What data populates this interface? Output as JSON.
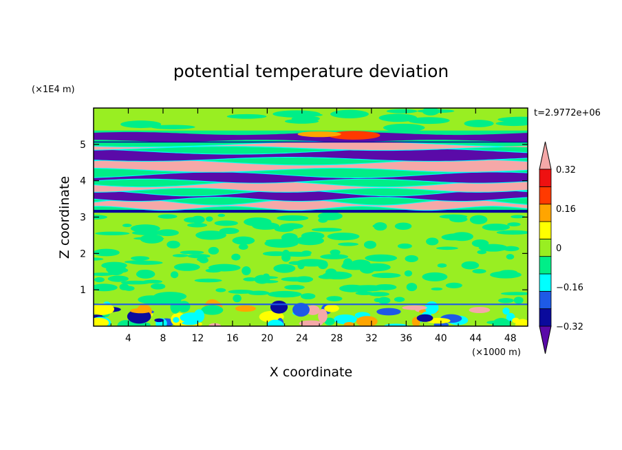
{
  "chart_data": {
    "type": "heatmap",
    "title": "potential temperature deviation",
    "xlabel": "X coordinate",
    "ylabel": "Z coordinate",
    "x_unit": "(×1000 m)",
    "y_unit": "(×1E4 m)",
    "time_label": "t=2.9772e+06",
    "xlim": [
      0,
      50
    ],
    "ylim": [
      0,
      6
    ],
    "x_ticks": [
      4,
      8,
      12,
      16,
      20,
      24,
      28,
      32,
      36,
      40,
      44,
      48
    ],
    "y_ticks": [
      1,
      2,
      3,
      4,
      5
    ],
    "colorbar": {
      "levels": [
        -0.4,
        -0.32,
        -0.24,
        -0.16,
        -0.08,
        0,
        0.08,
        0.16,
        0.24,
        0.32,
        0.4
      ],
      "tick_labels": [
        "0.32",
        "0.16",
        "0",
        "−0.16",
        "−0.32"
      ],
      "tick_values": [
        0.32,
        0.16,
        0,
        -0.16,
        -0.32
      ],
      "colors": [
        "#5a0aa8",
        "#0a0a9c",
        "#1e5ae6",
        "#00ffff",
        "#00ee88",
        "#99ee22",
        "#ffff00",
        "#ffa500",
        "#ff3a00",
        "#ee1111",
        "#f5a8a8"
      ]
    },
    "bands": [
      {
        "z": [
          0,
          0.6
        ],
        "description": "mixed"
      },
      {
        "z": [
          0.6,
          3.1
        ],
        "description": "near zero"
      },
      {
        "z": [
          3.1,
          5.4
        ],
        "description": "alternating layers"
      },
      {
        "z": [
          5.4,
          6.0
        ],
        "description": "near zero"
      }
    ]
  }
}
